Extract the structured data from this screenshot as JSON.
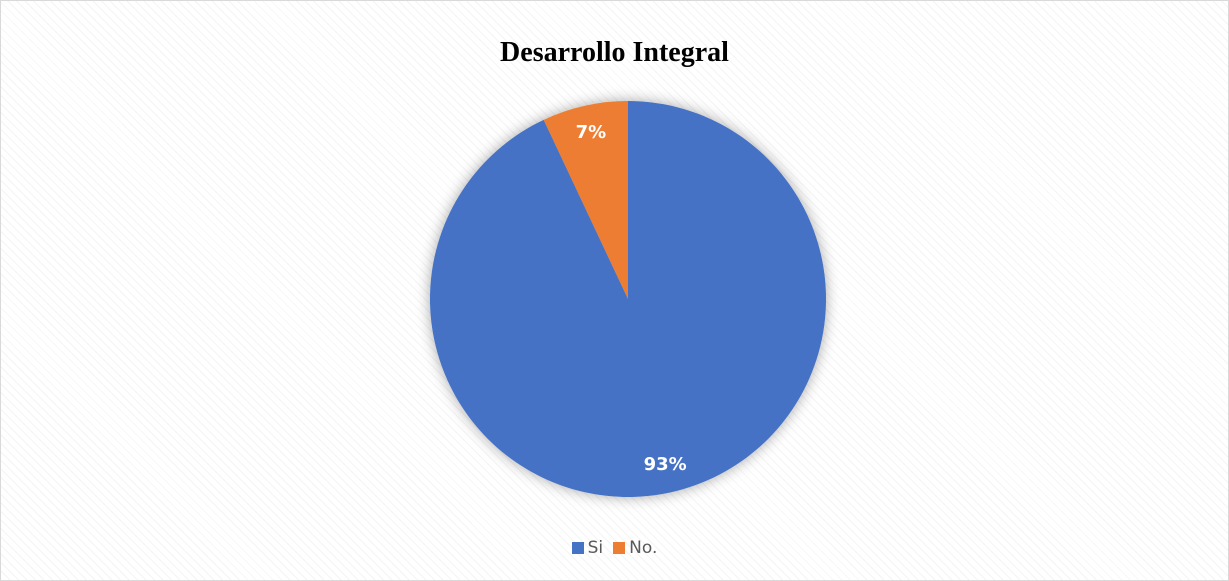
{
  "chart_data": {
    "type": "pie",
    "title": "Desarrollo Integral",
    "categories": [
      "Si",
      "No."
    ],
    "values": [
      93,
      7
    ],
    "data_labels": [
      "93%",
      "7%"
    ],
    "colors": [
      "#4472C4",
      "#ED7D31"
    ],
    "legend_position": "bottom",
    "start_angle_deg": 0,
    "direction": "clockwise"
  }
}
